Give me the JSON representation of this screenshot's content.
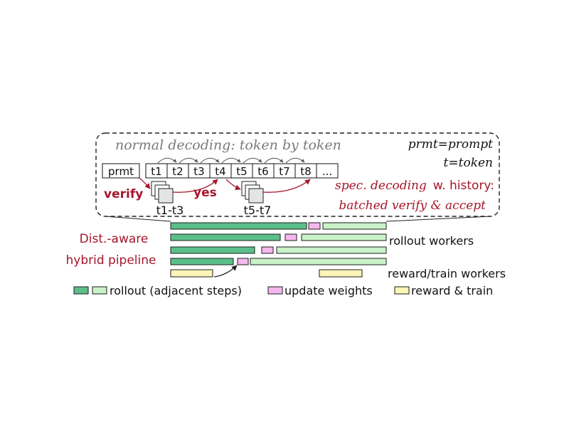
{
  "header": {
    "normal_decoding": "normal decoding: token by token",
    "legend_prompt": "prmt=prompt",
    "legend_token": "t=token"
  },
  "tokens": {
    "prompt": "prmt",
    "items": [
      "t1",
      "t2",
      "t3",
      "t4",
      "t5",
      "t6",
      "t7",
      "t8",
      "..."
    ]
  },
  "speculative": {
    "verify": "verify",
    "yes": "yes",
    "group1": "t1-t3",
    "group2": "t5-t7",
    "title_main": "spec. decoding",
    "title_rest": "w. history:",
    "subtitle": "batched verify & accept"
  },
  "pipeline": {
    "label_line1": "Dist.-aware",
    "label_line2": "hybrid pipeline",
    "rollout_label": "rollout workers",
    "reward_label": "reward/train workers"
  },
  "legend": {
    "rollout": "rollout (adjacent steps)",
    "update": "update weights",
    "reward": "reward & train"
  },
  "colors": {
    "rollout_dark": "#5cbf8a",
    "rollout_light": "#c9f2c9",
    "update": "#f5b8ee",
    "reward": "#fbf5b8",
    "accent_red": "#a5162b"
  }
}
